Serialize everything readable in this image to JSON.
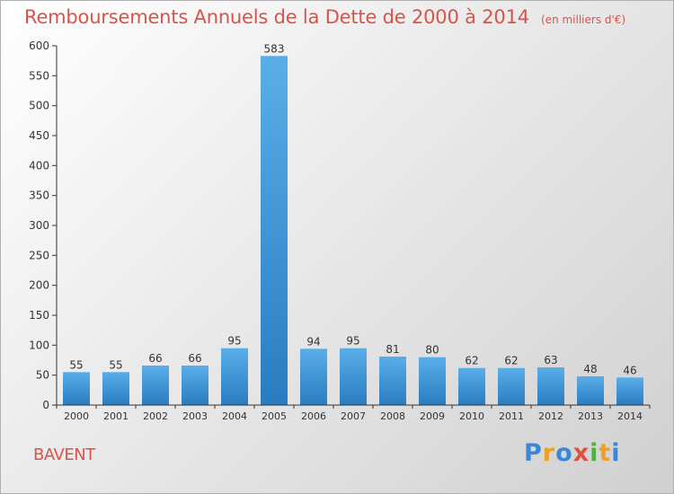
{
  "header": {
    "title": "Remboursements Annuels de la Dette de 2000 à 2014",
    "unit": "(en milliers d'€)"
  },
  "commune": "BAVENT",
  "logo": {
    "letters": [
      "P",
      "r",
      "o",
      "x",
      "i",
      "t",
      "i"
    ],
    "colors": [
      "#3a87d6",
      "#f0a020",
      "#3a87d6",
      "#e05040",
      "#50b040",
      "#f0a020",
      "#3a87d6"
    ]
  },
  "chart_data": {
    "type": "bar",
    "categories": [
      "2000",
      "2001",
      "2002",
      "2003",
      "2004",
      "2005",
      "2006",
      "2007",
      "2008",
      "2009",
      "2010",
      "2011",
      "2012",
      "2013",
      "2014"
    ],
    "values": [
      55,
      55,
      66,
      66,
      95,
      583,
      94,
      95,
      81,
      80,
      62,
      62,
      63,
      48,
      46
    ],
    "data_labels": [
      "55",
      "55",
      "66",
      "66",
      "95",
      "583",
      "94",
      "95",
      "81",
      "80",
      "62",
      "62",
      "63",
      "48",
      "46"
    ],
    "title": "Remboursements Annuels de la Dette de 2000 à 2014",
    "xlabel": "",
    "ylabel": "",
    "ylim": [
      0,
      600
    ],
    "yticks": [
      "0",
      "50",
      "100",
      "150",
      "200",
      "250",
      "300",
      "350",
      "400",
      "450",
      "500",
      "550",
      "600"
    ],
    "grid": false,
    "legend": "none",
    "colors": {
      "bar_light": "#5aaee8",
      "bar_dark": "#2a7cc0",
      "axis": "#333333"
    }
  }
}
